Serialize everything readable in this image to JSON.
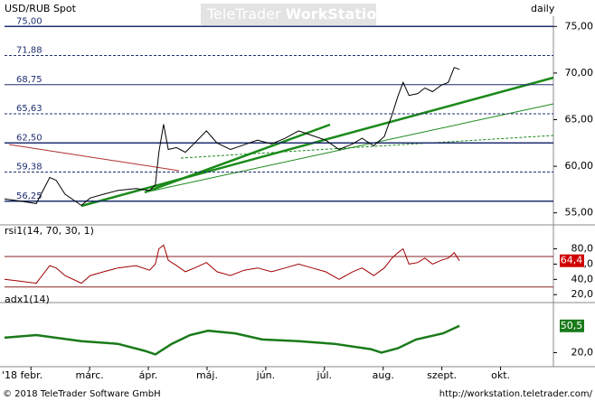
{
  "header": {
    "watermark_brand": "TeleTrader",
    "watermark_product": "WorkStation"
  },
  "footer": {
    "copyright": "© 2018 TeleTrader Software GmbH",
    "url": "http://workstation.teletrader.com/"
  },
  "chart_data": [
    {
      "type": "line",
      "title": "USD/RUB Spot",
      "subtitle": "daily",
      "color": "#000000",
      "x": [
        -0.45,
        -0.22,
        0.09,
        0.32,
        0.43,
        0.58,
        0.86,
        1.01,
        1.24,
        1.48,
        1.79,
        2.02,
        2.12,
        2.18,
        2.26,
        2.34,
        2.48,
        2.63,
        2.79,
        2.99,
        3.17,
        3.4,
        3.63,
        3.86,
        4.1,
        4.33,
        4.56,
        4.79,
        5.02,
        5.25,
        5.48,
        5.64,
        5.84,
        6.02,
        6.15,
        6.25,
        6.34,
        6.44,
        6.59,
        6.71,
        6.84,
        6.99,
        7.11,
        7.21,
        7.3
      ],
      "values": [
        56.5,
        56.3,
        56.0,
        58.8,
        58.5,
        57.0,
        55.8,
        56.6,
        57.0,
        57.4,
        57.6,
        57.4,
        58.0,
        61.5,
        64.5,
        61.8,
        62.0,
        61.5,
        62.5,
        63.8,
        62.5,
        61.8,
        62.3,
        62.8,
        62.4,
        63.0,
        63.8,
        63.3,
        62.8,
        61.8,
        62.4,
        63.0,
        62.2,
        63.2,
        65.5,
        67.5,
        69.0,
        67.6,
        67.8,
        68.4,
        68.0,
        68.7,
        69.0,
        70.6,
        70.4
      ],
      "xlim": [
        -0.45,
        8.9
      ],
      "ylim": [
        54.0,
        75.9
      ],
      "yticks": [
        {
          "value": 55,
          "label": "55,00"
        },
        {
          "value": 60,
          "label": "60,00"
        },
        {
          "value": 65,
          "label": "65,00"
        },
        {
          "value": 70,
          "label": "70,00"
        },
        {
          "value": 75,
          "label": "75,00"
        }
      ],
      "levels": [
        {
          "value": 75,
          "label": "75,00",
          "style": "major"
        },
        {
          "value": 71.88,
          "label": "71,88",
          "style": "dash"
        },
        {
          "value": 68.75,
          "label": "68,75",
          "style": "solid"
        },
        {
          "value": 65.63,
          "label": "65,63",
          "style": "dash"
        },
        {
          "value": 62.5,
          "label": "62,50",
          "style": "major"
        },
        {
          "value": 59.38,
          "label": "59,38",
          "style": "dash"
        },
        {
          "value": 56.25,
          "label": "56,25",
          "style": "major"
        }
      ]
    },
    {
      "type": "line",
      "title": "rsi1(14, 70, 30, 1)",
      "color": "#a00000",
      "x": [
        -0.45,
        -0.22,
        0.09,
        0.32,
        0.43,
        0.58,
        0.86,
        1.01,
        1.24,
        1.48,
        1.79,
        2.02,
        2.12,
        2.18,
        2.26,
        2.34,
        2.48,
        2.63,
        2.79,
        2.99,
        3.17,
        3.4,
        3.63,
        3.86,
        4.1,
        4.33,
        4.56,
        4.79,
        5.02,
        5.25,
        5.48,
        5.64,
        5.84,
        6.02,
        6.15,
        6.25,
        6.34,
        6.44,
        6.59,
        6.71,
        6.84,
        6.99,
        7.11,
        7.21,
        7.3
      ],
      "values": [
        40,
        38,
        35,
        58,
        55,
        45,
        35,
        45,
        50,
        55,
        58,
        52,
        60,
        80,
        85,
        65,
        58,
        50,
        55,
        62,
        50,
        45,
        52,
        55,
        50,
        55,
        60,
        55,
        50,
        40,
        50,
        55,
        45,
        55,
        68,
        75,
        80,
        60,
        62,
        68,
        60,
        65,
        68,
        75,
        64.4
      ],
      "xlim": [
        -0.45,
        8.9
      ],
      "ylim": [
        12,
        96
      ],
      "yticks": [
        {
          "value": 20,
          "label": "20,0"
        },
        {
          "value": 40,
          "label": "40,0"
        },
        {
          "value": 60,
          "label": "60,0"
        },
        {
          "value": 80,
          "label": "80,0"
        }
      ],
      "levels": [
        70,
        30
      ],
      "current": {
        "value": 64.4,
        "label": "64,4",
        "color": "#d00000"
      }
    },
    {
      "type": "line",
      "title": "adx1(14)",
      "color": "#1a7a1a",
      "x": [
        -0.45,
        0.09,
        0.86,
        1.48,
        1.94,
        2.12,
        2.4,
        2.71,
        3.02,
        3.48,
        3.94,
        4.56,
        5.17,
        5.79,
        5.97,
        6.25,
        6.56,
        7.02,
        7.3
      ],
      "values": [
        37,
        40,
        33,
        30,
        22,
        18,
        30,
        40,
        45,
        42,
        35,
        33,
        30,
        24,
        20,
        25,
        35,
        42,
        50.5
      ],
      "xlim": [
        -0.45,
        8.9
      ],
      "ylim": [
        5,
        74
      ],
      "yticks": [
        {
          "value": 20,
          "label": "20,0"
        }
      ],
      "current": {
        "value": 50.5,
        "label": "50,5",
        "color": "#1a7a1a"
      },
      "xticks": [
        {
          "value": 0,
          "label": "'18 febr."
        },
        {
          "value": 1,
          "label": "márc."
        },
        {
          "value": 2,
          "label": "ápr."
        },
        {
          "value": 3,
          "label": "máj."
        },
        {
          "value": 4,
          "label": "jún."
        },
        {
          "value": 5,
          "label": "júl."
        },
        {
          "value": 6,
          "label": "aug."
        },
        {
          "value": 7,
          "label": "szept."
        },
        {
          "value": 8,
          "label": "okt."
        }
      ]
    }
  ]
}
